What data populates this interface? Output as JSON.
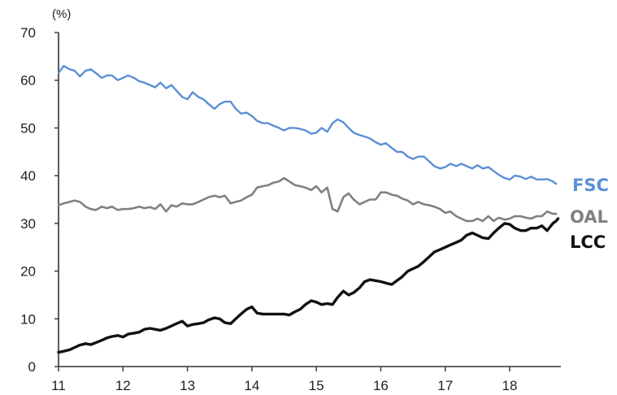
{
  "chart_data": {
    "type": "line",
    "title": "",
    "xlabel": "",
    "ylabel": "",
    "y_unit_label": "(%)",
    "xlim": [
      11,
      18.75
    ],
    "ylim": [
      0,
      70
    ],
    "x_ticks": [
      11,
      12,
      13,
      14,
      15,
      16,
      17,
      18
    ],
    "x_tick_labels": [
      "11",
      "12",
      "13",
      "14",
      "15",
      "16",
      "17",
      "18"
    ],
    "y_ticks": [
      0,
      10,
      20,
      30,
      40,
      50,
      60,
      70
    ],
    "y_tick_labels": [
      "0",
      "10",
      "20",
      "30",
      "40",
      "50",
      "60",
      "70"
    ],
    "grid": false,
    "legend": "none (series labelled at right end of lines)",
    "series": [
      {
        "name": "FSC",
        "color": "#5b8fd6",
        "points": [
          [
            11.0,
            61.5
          ],
          [
            11.08,
            63.0
          ],
          [
            11.17,
            62.3
          ],
          [
            11.25,
            62.0
          ],
          [
            11.33,
            60.8
          ],
          [
            11.42,
            62.0
          ],
          [
            11.5,
            62.3
          ],
          [
            11.58,
            61.5
          ],
          [
            11.67,
            60.5
          ],
          [
            11.75,
            61.0
          ],
          [
            11.83,
            61.0
          ],
          [
            11.92,
            60.0
          ],
          [
            12.0,
            60.5
          ],
          [
            12.08,
            61.0
          ],
          [
            12.17,
            60.5
          ],
          [
            12.25,
            59.8
          ],
          [
            12.33,
            59.5
          ],
          [
            12.42,
            59.0
          ],
          [
            12.5,
            58.5
          ],
          [
            12.58,
            59.5
          ],
          [
            12.67,
            58.3
          ],
          [
            12.75,
            59.0
          ],
          [
            12.83,
            57.8
          ],
          [
            12.92,
            56.5
          ],
          [
            13.0,
            56.0
          ],
          [
            13.08,
            57.5
          ],
          [
            13.17,
            56.5
          ],
          [
            13.25,
            56.0
          ],
          [
            13.33,
            55.0
          ],
          [
            13.42,
            54.0
          ],
          [
            13.5,
            55.0
          ],
          [
            13.58,
            55.5
          ],
          [
            13.67,
            55.5
          ],
          [
            13.75,
            54.0
          ],
          [
            13.83,
            53.0
          ],
          [
            13.92,
            53.2
          ],
          [
            14.0,
            52.5
          ],
          [
            14.08,
            51.5
          ],
          [
            14.17,
            51.0
          ],
          [
            14.25,
            51.0
          ],
          [
            14.33,
            50.5
          ],
          [
            14.42,
            50.0
          ],
          [
            14.5,
            49.5
          ],
          [
            14.58,
            50.0
          ],
          [
            14.67,
            50.0
          ],
          [
            14.75,
            49.8
          ],
          [
            14.83,
            49.5
          ],
          [
            14.92,
            48.8
          ],
          [
            15.0,
            49.0
          ],
          [
            15.08,
            50.0
          ],
          [
            15.17,
            49.2
          ],
          [
            15.25,
            51.0
          ],
          [
            15.33,
            51.8
          ],
          [
            15.42,
            51.2
          ],
          [
            15.5,
            50.0
          ],
          [
            15.58,
            49.0
          ],
          [
            15.67,
            48.5
          ],
          [
            15.75,
            48.2
          ],
          [
            15.83,
            47.8
          ],
          [
            15.92,
            47.0
          ],
          [
            16.0,
            46.5
          ],
          [
            16.08,
            46.8
          ],
          [
            16.17,
            45.8
          ],
          [
            16.25,
            45.0
          ],
          [
            16.33,
            45.0
          ],
          [
            16.42,
            44.0
          ],
          [
            16.5,
            43.5
          ],
          [
            16.58,
            44.0
          ],
          [
            16.67,
            44.0
          ],
          [
            16.75,
            43.0
          ],
          [
            16.83,
            42.0
          ],
          [
            16.92,
            41.5
          ],
          [
            17.0,
            41.8
          ],
          [
            17.08,
            42.5
          ],
          [
            17.17,
            42.0
          ],
          [
            17.25,
            42.5
          ],
          [
            17.33,
            42.0
          ],
          [
            17.42,
            41.5
          ],
          [
            17.5,
            42.2
          ],
          [
            17.58,
            41.5
          ],
          [
            17.67,
            41.8
          ],
          [
            17.75,
            41.0
          ],
          [
            17.83,
            40.2
          ],
          [
            17.92,
            39.5
          ],
          [
            18.0,
            39.2
          ],
          [
            18.08,
            40.0
          ],
          [
            18.17,
            39.8
          ],
          [
            18.25,
            39.3
          ],
          [
            18.33,
            39.8
          ],
          [
            18.42,
            39.2
          ],
          [
            18.5,
            39.2
          ],
          [
            18.58,
            39.3
          ],
          [
            18.67,
            38.8
          ],
          [
            18.72,
            38.3
          ]
        ]
      },
      {
        "name": "OAL",
        "color": "#808080",
        "points": [
          [
            11.0,
            33.8
          ],
          [
            11.08,
            34.2
          ],
          [
            11.17,
            34.5
          ],
          [
            11.25,
            34.8
          ],
          [
            11.33,
            34.5
          ],
          [
            11.42,
            33.5
          ],
          [
            11.5,
            33.0
          ],
          [
            11.58,
            32.8
          ],
          [
            11.67,
            33.5
          ],
          [
            11.75,
            33.2
          ],
          [
            11.83,
            33.5
          ],
          [
            11.92,
            32.8
          ],
          [
            12.0,
            33.0
          ],
          [
            12.08,
            33.0
          ],
          [
            12.17,
            33.2
          ],
          [
            12.25,
            33.5
          ],
          [
            12.33,
            33.2
          ],
          [
            12.42,
            33.4
          ],
          [
            12.5,
            33.0
          ],
          [
            12.58,
            34.0
          ],
          [
            12.67,
            32.5
          ],
          [
            12.75,
            33.8
          ],
          [
            12.83,
            33.5
          ],
          [
            12.92,
            34.2
          ],
          [
            13.0,
            34.0
          ],
          [
            13.08,
            34.0
          ],
          [
            13.17,
            34.5
          ],
          [
            13.25,
            35.0
          ],
          [
            13.33,
            35.5
          ],
          [
            13.42,
            35.8
          ],
          [
            13.5,
            35.5
          ],
          [
            13.58,
            35.8
          ],
          [
            13.67,
            34.2
          ],
          [
            13.75,
            34.5
          ],
          [
            13.83,
            34.8
          ],
          [
            13.92,
            35.5
          ],
          [
            14.0,
            36.0
          ],
          [
            14.08,
            37.5
          ],
          [
            14.17,
            37.8
          ],
          [
            14.25,
            38.0
          ],
          [
            14.33,
            38.5
          ],
          [
            14.42,
            38.8
          ],
          [
            14.5,
            39.5
          ],
          [
            14.58,
            38.8
          ],
          [
            14.67,
            38.0
          ],
          [
            14.75,
            37.8
          ],
          [
            14.83,
            37.5
          ],
          [
            14.92,
            37.0
          ],
          [
            15.0,
            37.8
          ],
          [
            15.08,
            36.5
          ],
          [
            15.17,
            37.5
          ],
          [
            15.25,
            33.0
          ],
          [
            15.33,
            32.5
          ],
          [
            15.42,
            35.5
          ],
          [
            15.5,
            36.3
          ],
          [
            15.58,
            35.0
          ],
          [
            15.67,
            34.0
          ],
          [
            15.75,
            34.5
          ],
          [
            15.83,
            35.0
          ],
          [
            15.92,
            35.0
          ],
          [
            16.0,
            36.5
          ],
          [
            16.08,
            36.5
          ],
          [
            16.17,
            36.0
          ],
          [
            16.25,
            35.8
          ],
          [
            16.33,
            35.2
          ],
          [
            16.42,
            34.8
          ],
          [
            16.5,
            34.0
          ],
          [
            16.58,
            34.5
          ],
          [
            16.67,
            34.0
          ],
          [
            16.75,
            33.8
          ],
          [
            16.83,
            33.5
          ],
          [
            16.92,
            33.0
          ],
          [
            17.0,
            32.2
          ],
          [
            17.08,
            32.5
          ],
          [
            17.17,
            31.5
          ],
          [
            17.25,
            31.0
          ],
          [
            17.33,
            30.5
          ],
          [
            17.42,
            30.5
          ],
          [
            17.5,
            31.0
          ],
          [
            17.58,
            30.5
          ],
          [
            17.67,
            31.5
          ],
          [
            17.75,
            30.5
          ],
          [
            17.83,
            31.2
          ],
          [
            17.92,
            30.8
          ],
          [
            18.0,
            31.0
          ],
          [
            18.08,
            31.5
          ],
          [
            18.17,
            31.5
          ],
          [
            18.25,
            31.2
          ],
          [
            18.33,
            31.0
          ],
          [
            18.42,
            31.5
          ],
          [
            18.5,
            31.5
          ],
          [
            18.58,
            32.5
          ],
          [
            18.67,
            32.0
          ],
          [
            18.72,
            32.0
          ]
        ]
      },
      {
        "name": "LCC",
        "color": "#111111",
        "points": [
          [
            11.0,
            3.0
          ],
          [
            11.08,
            3.2
          ],
          [
            11.17,
            3.5
          ],
          [
            11.25,
            4.0
          ],
          [
            11.33,
            4.5
          ],
          [
            11.42,
            4.8
          ],
          [
            11.5,
            4.6
          ],
          [
            11.58,
            5.0
          ],
          [
            11.67,
            5.5
          ],
          [
            11.75,
            6.0
          ],
          [
            11.83,
            6.3
          ],
          [
            11.92,
            6.5
          ],
          [
            12.0,
            6.2
          ],
          [
            12.08,
            6.8
          ],
          [
            12.17,
            7.0
          ],
          [
            12.25,
            7.2
          ],
          [
            12.33,
            7.8
          ],
          [
            12.42,
            8.0
          ],
          [
            12.5,
            7.8
          ],
          [
            12.58,
            7.6
          ],
          [
            12.67,
            8.0
          ],
          [
            12.75,
            8.5
          ],
          [
            12.83,
            9.0
          ],
          [
            12.92,
            9.5
          ],
          [
            13.0,
            8.5
          ],
          [
            13.08,
            8.8
          ],
          [
            13.17,
            9.0
          ],
          [
            13.25,
            9.2
          ],
          [
            13.33,
            9.8
          ],
          [
            13.42,
            10.2
          ],
          [
            13.5,
            10.0
          ],
          [
            13.58,
            9.2
          ],
          [
            13.67,
            9.0
          ],
          [
            13.75,
            10.0
          ],
          [
            13.83,
            11.0
          ],
          [
            13.92,
            12.0
          ],
          [
            14.0,
            12.5
          ],
          [
            14.08,
            11.2
          ],
          [
            14.17,
            11.0
          ],
          [
            14.25,
            11.0
          ],
          [
            14.33,
            11.0
          ],
          [
            14.42,
            11.0
          ],
          [
            14.5,
            11.0
          ],
          [
            14.58,
            10.8
          ],
          [
            14.67,
            11.5
          ],
          [
            14.75,
            12.0
          ],
          [
            14.83,
            13.0
          ],
          [
            14.92,
            13.8
          ],
          [
            15.0,
            13.5
          ],
          [
            15.08,
            13.0
          ],
          [
            15.17,
            13.2
          ],
          [
            15.25,
            13.0
          ],
          [
            15.33,
            14.5
          ],
          [
            15.42,
            15.8
          ],
          [
            15.5,
            15.0
          ],
          [
            15.58,
            15.5
          ],
          [
            15.67,
            16.5
          ],
          [
            15.75,
            17.8
          ],
          [
            15.83,
            18.2
          ],
          [
            15.92,
            18.0
          ],
          [
            16.0,
            17.8
          ],
          [
            16.08,
            17.5
          ],
          [
            16.17,
            17.2
          ],
          [
            16.25,
            18.0
          ],
          [
            16.33,
            18.8
          ],
          [
            16.42,
            20.0
          ],
          [
            16.5,
            20.5
          ],
          [
            16.58,
            21.0
          ],
          [
            16.67,
            22.0
          ],
          [
            16.75,
            23.0
          ],
          [
            16.83,
            24.0
          ],
          [
            16.92,
            24.5
          ],
          [
            17.0,
            25.0
          ],
          [
            17.08,
            25.5
          ],
          [
            17.17,
            26.0
          ],
          [
            17.25,
            26.5
          ],
          [
            17.33,
            27.5
          ],
          [
            17.42,
            28.0
          ],
          [
            17.5,
            27.5
          ],
          [
            17.58,
            27.0
          ],
          [
            17.67,
            26.8
          ],
          [
            17.75,
            28.0
          ],
          [
            17.83,
            29.0
          ],
          [
            17.92,
            30.0
          ],
          [
            18.0,
            29.8
          ],
          [
            18.08,
            29.0
          ],
          [
            18.17,
            28.5
          ],
          [
            18.25,
            28.5
          ],
          [
            18.33,
            29.0
          ],
          [
            18.42,
            29.0
          ],
          [
            18.5,
            29.5
          ],
          [
            18.58,
            28.5
          ],
          [
            18.67,
            30.0
          ],
          [
            18.72,
            30.5
          ],
          [
            18.75,
            31.0
          ]
        ]
      }
    ]
  }
}
